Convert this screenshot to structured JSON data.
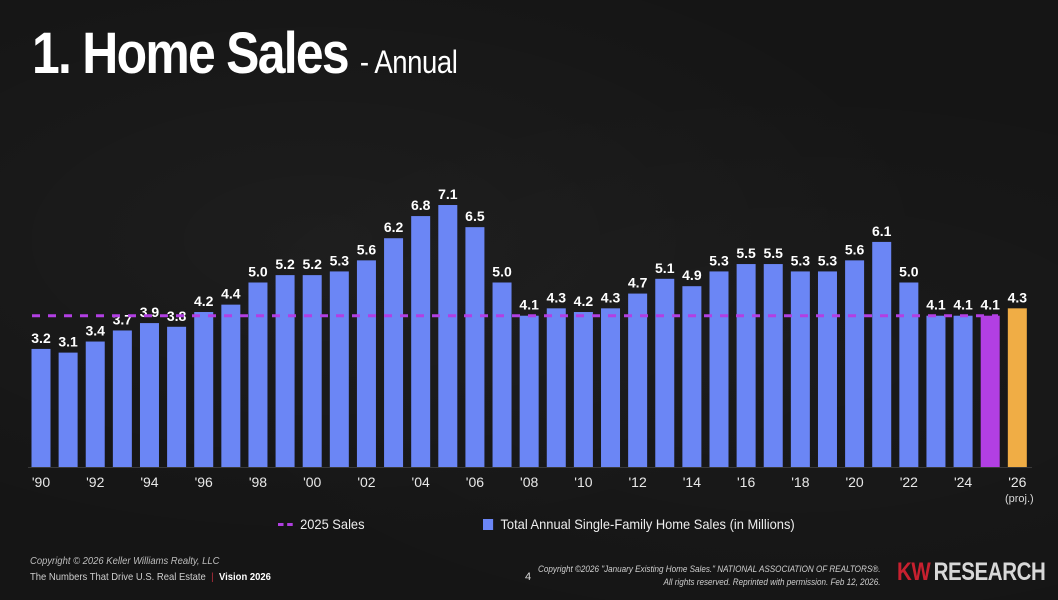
{
  "header": {
    "title": "1. Home Sales",
    "subtitle": "- Annual"
  },
  "chart_data": {
    "type": "bar",
    "title": "1. Home Sales - Annual",
    "xlabel": "",
    "ylabel": "",
    "ylim": [
      0,
      7.5
    ],
    "grid": false,
    "legend_position": "bottom",
    "categories": [
      "1990",
      "1991",
      "1992",
      "1993",
      "1994",
      "1995",
      "1996",
      "1997",
      "1998",
      "1999",
      "2000",
      "2001",
      "2002",
      "2003",
      "2004",
      "2005",
      "2006",
      "2007",
      "2008",
      "2009",
      "2010",
      "2011",
      "2012",
      "2013",
      "2014",
      "2015",
      "2016",
      "2017",
      "2018",
      "2019",
      "2020",
      "2021",
      "2022",
      "2023",
      "2024",
      "2025",
      "2026"
    ],
    "values": [
      3.2,
      3.1,
      3.4,
      3.7,
      3.9,
      3.8,
      4.2,
      4.4,
      5.0,
      5.2,
      5.2,
      5.3,
      5.6,
      6.2,
      6.8,
      7.1,
      6.5,
      5.0,
      4.1,
      4.3,
      4.2,
      4.3,
      4.7,
      5.1,
      4.9,
      5.3,
      5.5,
      5.5,
      5.3,
      5.3,
      5.6,
      6.1,
      5.0,
      4.1,
      4.1,
      4.1,
      4.3
    ],
    "data_labels": [
      "3.2",
      "3.1",
      "3.4",
      "3.7",
      "3.9",
      "3.8",
      "4.2",
      "4.4",
      "5.0",
      "5.2",
      "5.2",
      "5.3",
      "5.6",
      "6.2",
      "6.8",
      "7.1",
      "6.5",
      "5.0",
      "4.1",
      "4.3",
      "4.2",
      "4.3",
      "4.7",
      "5.1",
      "4.9",
      "5.3",
      "5.5",
      "5.5",
      "5.3",
      "5.3",
      "5.6",
      "6.1",
      "5.0",
      "4.1",
      "4.1",
      "4.1",
      "4.3"
    ],
    "highlight": {
      "2025": "#b23fe3",
      "2026": "#f0ad45"
    },
    "bar_color": "#6b86f5",
    "x_tick_labels": [
      {
        "index": 0,
        "label": "'90"
      },
      {
        "index": 2,
        "label": "'92"
      },
      {
        "index": 4,
        "label": "'94"
      },
      {
        "index": 6,
        "label": "'96"
      },
      {
        "index": 8,
        "label": "'98"
      },
      {
        "index": 10,
        "label": "'00"
      },
      {
        "index": 12,
        "label": "'02"
      },
      {
        "index": 14,
        "label": "'04"
      },
      {
        "index": 16,
        "label": "'06"
      },
      {
        "index": 18,
        "label": "'08"
      },
      {
        "index": 20,
        "label": "'10"
      },
      {
        "index": 22,
        "label": "'12"
      },
      {
        "index": 24,
        "label": "'14"
      },
      {
        "index": 26,
        "label": "'16"
      },
      {
        "index": 28,
        "label": "'18"
      },
      {
        "index": 30,
        "label": "'20"
      },
      {
        "index": 32,
        "label": "'22"
      },
      {
        "index": 34,
        "label": "'24"
      },
      {
        "index": 36,
        "label": "'26",
        "sublabel": "(proj.)"
      }
    ],
    "reference_line": {
      "name": "2025 Sales",
      "value": 4.1,
      "color": "#b23fe3",
      "style": "dashed"
    },
    "series": [
      {
        "name": "Total Annual Single-Family Home Sales (in Millions)",
        "color": "#6b86f5"
      }
    ]
  },
  "legend": {
    "reference_label": "2025 Sales",
    "series_label": "Total Annual Single-Family Home Sales (in Millions)"
  },
  "footer": {
    "copyright": "Copyright © 2026 Keller Williams Realty, LLC",
    "tagline": "The Numbers That Drive U.S. Real Estate",
    "separator": "|",
    "vision": "Vision 2026",
    "page_number": "4",
    "source_line1": "Copyright ©2026 \"January Existing Home Sales.\" NATIONAL ASSOCIATION OF REALTORS®.",
    "source_line2": "All rights reserved. Reprinted with permission. Feb 12, 2026.",
    "brand_kw": "KW",
    "brand_research": "RESEARCH"
  }
}
